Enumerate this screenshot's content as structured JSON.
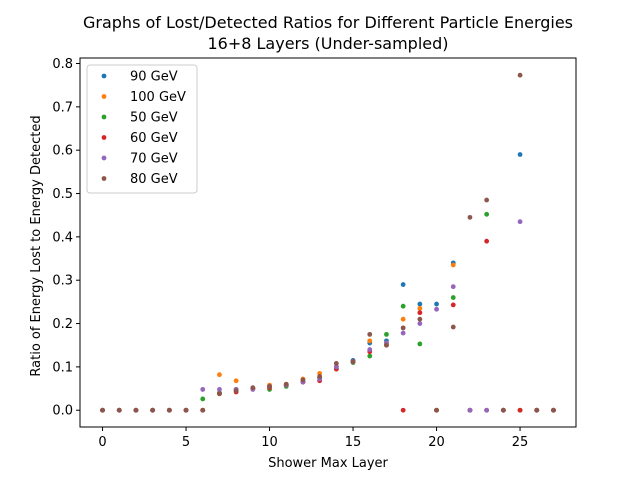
{
  "chart_data": {
    "type": "scatter",
    "title": "Graphs of Lost/Detected Ratios for Different Particle Energies",
    "subtitle": "16+8 Layers (Under-sampled)",
    "xlabel": "Shower Max Layer",
    "ylabel": "Ratio of Energy Lost to Energy Detected",
    "xlim": [
      -1.35,
      28.35
    ],
    "ylim": [
      -0.0387,
      0.8127
    ],
    "xticks": [
      0,
      5,
      10,
      15,
      20,
      25
    ],
    "yticks": [
      0.0,
      0.1,
      0.2,
      0.3,
      0.4,
      0.5,
      0.6,
      0.7,
      0.8
    ],
    "xtick_labels": [
      "0",
      "5",
      "10",
      "15",
      "20",
      "25"
    ],
    "ytick_labels": [
      "0.0",
      "0.1",
      "0.2",
      "0.3",
      "0.4",
      "0.5",
      "0.6",
      "0.7",
      "0.8"
    ],
    "legend_position": "top-left",
    "series": [
      {
        "name": "90 GeV",
        "color": "#1f77b4",
        "x": [
          0,
          1,
          2,
          3,
          4,
          5,
          6,
          7,
          8,
          9,
          10,
          11,
          12,
          13,
          14,
          15,
          16,
          17,
          18,
          19,
          20,
          21,
          22,
          23,
          24,
          25,
          26,
          27
        ],
        "y": [
          0.0,
          0.0,
          0.0,
          0.0,
          0.0,
          0.0,
          0.0,
          0.04,
          0.045,
          0.05,
          0.055,
          0.058,
          0.065,
          0.075,
          0.1,
          0.115,
          0.155,
          0.16,
          0.29,
          0.245,
          0.245,
          0.34,
          0.0,
          0.0,
          0.0,
          0.59,
          0.0,
          0.0
        ]
      },
      {
        "name": "100 GeV",
        "color": "#ff7f0e",
        "x": [
          0,
          1,
          2,
          3,
          4,
          5,
          6,
          7,
          8,
          9,
          10,
          11,
          12,
          13,
          14,
          15,
          16,
          17,
          18,
          19,
          20,
          21,
          22,
          23,
          24,
          25,
          26,
          27
        ],
        "y": [
          0.0,
          0.0,
          0.0,
          0.0,
          0.0,
          0.0,
          0.0,
          0.082,
          0.068,
          0.05,
          0.058,
          0.06,
          0.072,
          0.085,
          0.1,
          0.112,
          0.16,
          0.155,
          0.21,
          0.235,
          0.0,
          0.335,
          0.0,
          0.0,
          0.0,
          0.0,
          0.0,
          0.0
        ]
      },
      {
        "name": "50 GeV",
        "color": "#2ca02c",
        "x": [
          0,
          1,
          2,
          3,
          4,
          5,
          6,
          7,
          8,
          9,
          10,
          11,
          12,
          13,
          14,
          15,
          16,
          17,
          18,
          19,
          20,
          21,
          22,
          23,
          24,
          25,
          26,
          27
        ],
        "y": [
          0.0,
          0.0,
          0.0,
          0.0,
          0.0,
          0.0,
          0.026,
          0.04,
          0.048,
          0.05,
          0.048,
          0.055,
          0.065,
          0.075,
          0.095,
          0.11,
          0.125,
          0.175,
          0.24,
          0.153,
          0.0,
          0.26,
          0.0,
          0.452,
          0.0,
          0.0,
          0.0,
          0.0
        ]
      },
      {
        "name": "60 GeV",
        "color": "#d62728",
        "x": [
          0,
          1,
          2,
          3,
          4,
          5,
          6,
          7,
          8,
          9,
          10,
          11,
          12,
          13,
          14,
          15,
          16,
          17,
          18,
          19,
          20,
          21,
          22,
          23,
          24,
          25,
          26,
          27
        ],
        "y": [
          0.0,
          0.0,
          0.0,
          0.0,
          0.0,
          0.0,
          0.0,
          0.038,
          0.042,
          0.05,
          0.052,
          0.058,
          0.065,
          0.068,
          0.095,
          0.112,
          0.135,
          0.15,
          0.0,
          0.225,
          0.0,
          0.243,
          0.0,
          0.39,
          0.0,
          0.0,
          0.0,
          0.0
        ]
      },
      {
        "name": "70 GeV",
        "color": "#9467bd",
        "x": [
          0,
          1,
          2,
          3,
          4,
          5,
          6,
          7,
          8,
          9,
          10,
          11,
          12,
          13,
          14,
          15,
          16,
          17,
          18,
          19,
          20,
          21,
          22,
          23,
          24,
          25,
          26,
          27
        ],
        "y": [
          0.0,
          0.0,
          0.0,
          0.0,
          0.0,
          0.0,
          0.048,
          0.048,
          0.048,
          0.048,
          0.055,
          0.058,
          0.065,
          0.072,
          0.1,
          0.112,
          0.14,
          0.155,
          0.178,
          0.2,
          0.233,
          0.285,
          0.0,
          0.0,
          0.0,
          0.435,
          0.0,
          0.0
        ]
      },
      {
        "name": "80 GeV",
        "color": "#8c564b",
        "x": [
          0,
          1,
          2,
          3,
          4,
          5,
          6,
          7,
          8,
          9,
          10,
          11,
          12,
          13,
          14,
          15,
          16,
          17,
          18,
          19,
          20,
          21,
          22,
          23,
          24,
          25,
          26,
          27
        ],
        "y": [
          0.0,
          0.0,
          0.0,
          0.0,
          0.0,
          0.0,
          0.0,
          0.038,
          0.045,
          0.052,
          0.055,
          0.06,
          0.07,
          0.078,
          0.108,
          0.112,
          0.175,
          0.15,
          0.19,
          0.21,
          0.0,
          0.192,
          0.445,
          0.485,
          0.0,
          0.773,
          0.0,
          0.0
        ]
      }
    ]
  }
}
